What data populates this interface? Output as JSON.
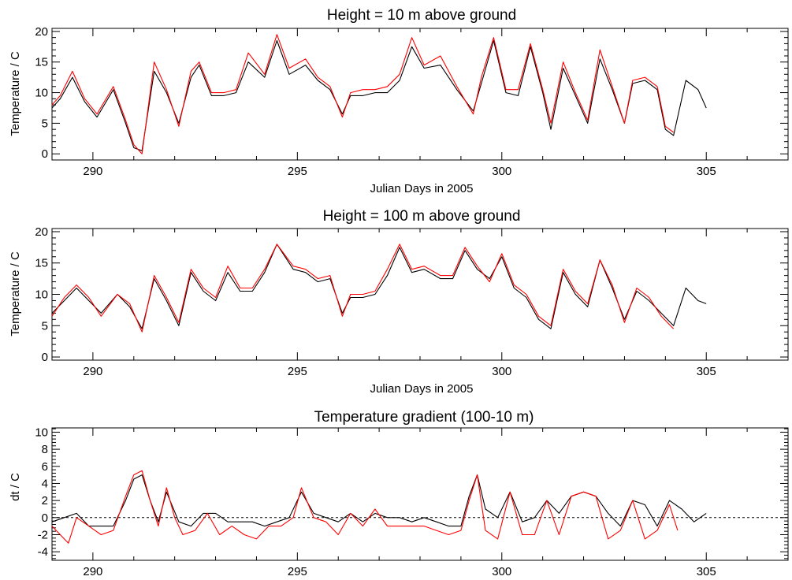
{
  "colors": {
    "measured": "#000000",
    "model": "#ff0000",
    "zero_line": "#000000",
    "axes": "#000000"
  },
  "chart_data": [
    {
      "type": "line",
      "title": "Height = 10 m above ground",
      "xlabel": "Julian Days in 2005",
      "ylabel": "Temperature / C",
      "xlim": [
        289,
        307
      ],
      "ylim": [
        -1,
        20.5
      ],
      "xticks": [
        290,
        295,
        300,
        305
      ],
      "yticks": [
        0,
        5,
        10,
        15,
        20
      ],
      "grid": false,
      "series": [
        {
          "color": "#000000",
          "x": [
            289,
            289.2,
            289.5,
            289.8,
            290.1,
            290.5,
            290.8,
            291.0,
            291.2,
            291.5,
            291.8,
            292.1,
            292.4,
            292.6,
            292.9,
            293.2,
            293.5,
            293.8,
            294.2,
            294.5,
            294.8,
            295.2,
            295.5,
            295.8,
            296.1,
            296.3,
            296.6,
            296.9,
            297.2,
            297.5,
            297.8,
            298.1,
            298.5,
            298.9,
            299.3,
            299.5,
            299.8,
            300.1,
            300.4,
            300.7,
            301.0,
            301.2,
            301.5,
            301.8,
            302.1,
            302.4,
            302.7,
            303.0,
            303.2,
            303.5,
            303.8,
            304.0,
            304.2,
            304.5,
            304.8,
            305.0
          ],
          "y": [
            7.5,
            9,
            12.5,
            8.5,
            6,
            10.5,
            5,
            1,
            0.5,
            13.5,
            10,
            5,
            12.5,
            14.5,
            9.5,
            9.5,
            10,
            15,
            12.5,
            18.5,
            13,
            14.5,
            12,
            10.5,
            6.5,
            9.5,
            9.5,
            10,
            10,
            12,
            17.5,
            14,
            14.5,
            10.5,
            7,
            11.5,
            18.5,
            10,
            9.5,
            17.5,
            10,
            4,
            14,
            9.5,
            5,
            15.5,
            10.5,
            5,
            11.5,
            12,
            10.5,
            4,
            3,
            12,
            10.5,
            7.5
          ]
        },
        {
          "color": "#ff0000",
          "x": [
            289,
            289.2,
            289.5,
            289.8,
            290.1,
            290.5,
            290.8,
            291.0,
            291.2,
            291.5,
            291.8,
            292.1,
            292.4,
            292.6,
            292.9,
            293.2,
            293.5,
            293.8,
            294.2,
            294.5,
            294.8,
            295.2,
            295.5,
            295.8,
            296.1,
            296.3,
            296.6,
            296.9,
            297.2,
            297.5,
            297.8,
            298.1,
            298.5,
            298.9,
            299.3,
            299.5,
            299.8,
            300.1,
            300.4,
            300.7,
            301.0,
            301.2,
            301.5,
            301.8,
            302.1,
            302.4,
            302.7,
            303.0,
            303.2,
            303.5,
            303.8,
            304.0,
            304.2
          ],
          "y": [
            8,
            9.5,
            13.5,
            9,
            6.5,
            11,
            5.5,
            1.5,
            0,
            15,
            10.5,
            4.5,
            13.5,
            15,
            10,
            10,
            10.5,
            16.5,
            13,
            19.5,
            14,
            15.5,
            12.5,
            11,
            6,
            10,
            10.5,
            10.5,
            11,
            13,
            19,
            14.5,
            16,
            11,
            6.5,
            12.5,
            19,
            10.5,
            10.5,
            18,
            10.5,
            5,
            15,
            10,
            5.5,
            17,
            11,
            5,
            12,
            12.5,
            11,
            4.5,
            3.5
          ]
        }
      ]
    },
    {
      "type": "line",
      "title": "Height = 100 m above ground",
      "xlabel": "Julian Days in 2005",
      "ylabel": "Temperature / C",
      "xlim": [
        289,
        307
      ],
      "ylim": [
        -0.5,
        20.5
      ],
      "xticks": [
        290,
        295,
        300,
        305
      ],
      "yticks": [
        0,
        5,
        10,
        15,
        20
      ],
      "grid": false,
      "series": [
        {
          "color": "#000000",
          "x": [
            289,
            289.3,
            289.6,
            289.9,
            290.2,
            290.6,
            290.9,
            291.2,
            291.5,
            291.8,
            292.1,
            292.4,
            292.7,
            293.0,
            293.3,
            293.6,
            293.9,
            294.2,
            294.5,
            294.9,
            295.2,
            295.5,
            295.8,
            296.1,
            296.3,
            296.6,
            296.9,
            297.2,
            297.5,
            297.8,
            298.1,
            298.5,
            298.8,
            299.1,
            299.4,
            299.7,
            300.0,
            300.3,
            300.6,
            300.9,
            301.2,
            301.5,
            301.8,
            302.1,
            302.4,
            302.7,
            303.0,
            303.3,
            303.6,
            303.9,
            304.2,
            304.5,
            304.8,
            305.0
          ],
          "y": [
            7,
            9,
            11,
            9,
            7,
            10,
            8,
            4.5,
            12.5,
            9,
            5,
            13.5,
            10.5,
            9,
            13.5,
            10.5,
            10.5,
            13.5,
            18,
            14,
            13.5,
            12,
            12.5,
            7,
            9.5,
            9.5,
            10,
            13,
            17.5,
            13.5,
            14,
            12.5,
            12.5,
            17,
            14,
            12.5,
            16,
            11,
            9.5,
            6,
            4.5,
            13.5,
            10,
            8,
            15.5,
            11,
            6,
            10.5,
            9,
            7,
            5,
            11,
            9,
            8.5
          ]
        },
        {
          "color": "#ff0000",
          "x": [
            289,
            289.3,
            289.6,
            289.9,
            290.2,
            290.6,
            290.9,
            291.2,
            291.5,
            291.8,
            292.1,
            292.4,
            292.7,
            293.0,
            293.3,
            293.6,
            293.9,
            294.2,
            294.5,
            294.9,
            295.2,
            295.5,
            295.8,
            296.1,
            296.3,
            296.6,
            296.9,
            297.2,
            297.5,
            297.8,
            298.1,
            298.5,
            298.8,
            299.1,
            299.4,
            299.7,
            300.0,
            300.3,
            300.6,
            300.9,
            301.2,
            301.5,
            301.8,
            302.1,
            302.4,
            302.7,
            303.0,
            303.3,
            303.6,
            303.9,
            304.2
          ],
          "y": [
            6.5,
            9.5,
            11.5,
            9.5,
            6.5,
            10,
            8.5,
            4,
            13,
            9.5,
            5.5,
            14,
            11,
            9.5,
            14.5,
            11,
            11,
            14,
            18,
            14.5,
            14,
            12.5,
            13,
            6.5,
            10,
            10,
            10.5,
            14,
            18,
            14,
            14.5,
            13,
            13,
            17.5,
            14.5,
            12,
            16.5,
            11.5,
            10,
            6.5,
            5,
            14,
            10.5,
            8.5,
            15.5,
            11.5,
            5.5,
            11,
            9.5,
            6.5,
            4.5
          ]
        }
      ]
    },
    {
      "type": "line",
      "title": "Temperature gradient (100-10 m)",
      "xlabel": "",
      "ylabel": "dt / C",
      "xlim": [
        289,
        307
      ],
      "ylim": [
        -5,
        10.5
      ],
      "xticks": [
        290,
        295,
        300,
        305
      ],
      "yticks": [
        -4,
        -2,
        0,
        2,
        4,
        6,
        8,
        10
      ],
      "reference_line": {
        "y": 0,
        "style": "dashed"
      },
      "grid": false,
      "series": [
        {
          "color": "#000000",
          "x": [
            289,
            289.3,
            289.6,
            289.9,
            290.2,
            290.5,
            290.8,
            291.0,
            291.2,
            291.4,
            291.6,
            291.8,
            292.1,
            292.4,
            292.7,
            293.0,
            293.3,
            293.6,
            293.9,
            294.2,
            294.5,
            294.8,
            295.1,
            295.4,
            295.7,
            296.0,
            296.3,
            296.6,
            296.9,
            297.2,
            297.5,
            297.8,
            298.1,
            298.4,
            298.7,
            299.0,
            299.2,
            299.4,
            299.6,
            299.9,
            300.2,
            300.5,
            300.8,
            301.1,
            301.4,
            301.7,
            302.0,
            302.3,
            302.6,
            302.9,
            303.2,
            303.5,
            303.8,
            304.1,
            304.4,
            304.7,
            305.0
          ],
          "y": [
            -0.5,
            0,
            0.5,
            -1,
            -1,
            -1,
            2,
            4.5,
            5,
            2,
            -0.5,
            3,
            -0.5,
            -1,
            0.5,
            0.5,
            -0.5,
            -0.5,
            -0.5,
            -1,
            -0.5,
            0,
            3,
            0.5,
            0,
            -0.5,
            0.5,
            -0.5,
            0.5,
            0,
            0,
            -0.5,
            0,
            -0.5,
            -1,
            -1,
            2.5,
            5,
            1,
            0,
            3,
            -0.5,
            0,
            2,
            0.5,
            2.5,
            3,
            2.5,
            0.5,
            -1,
            2,
            1.5,
            -1,
            2,
            1,
            -0.5,
            0.5
          ]
        },
        {
          "color": "#ff0000",
          "x": [
            289,
            289.2,
            289.4,
            289.6,
            289.9,
            290.2,
            290.5,
            290.8,
            291.0,
            291.2,
            291.4,
            291.6,
            291.8,
            292.0,
            292.2,
            292.5,
            292.8,
            293.1,
            293.4,
            293.7,
            294.0,
            294.3,
            294.6,
            294.9,
            295.1,
            295.4,
            295.7,
            296.0,
            296.3,
            296.6,
            296.9,
            297.2,
            297.5,
            297.8,
            298.1,
            298.4,
            298.7,
            299.0,
            299.2,
            299.4,
            299.6,
            299.9,
            300.2,
            300.5,
            300.8,
            301.1,
            301.4,
            301.7,
            302.0,
            302.3,
            302.6,
            302.9,
            303.2,
            303.5,
            303.8,
            304.1,
            304.3
          ],
          "y": [
            -1,
            -2,
            -3,
            0,
            -1,
            -2,
            -1.5,
            2.5,
            5,
            5.5,
            2,
            -1,
            3.5,
            0,
            -2,
            -1.5,
            0.5,
            -2,
            -1,
            -2,
            -2.5,
            -1,
            -1,
            0,
            3.5,
            0,
            -0.5,
            -2,
            0.5,
            -1,
            1,
            -1,
            -1,
            -1,
            -1,
            -1.5,
            -2,
            -1.5,
            2,
            5,
            -1.5,
            -2.5,
            3,
            -2,
            -2,
            2,
            -2,
            2.5,
            3,
            2.5,
            -2.5,
            -1.5,
            2,
            -2.5,
            -1.5,
            1.5,
            -1.5
          ]
        }
      ]
    }
  ]
}
